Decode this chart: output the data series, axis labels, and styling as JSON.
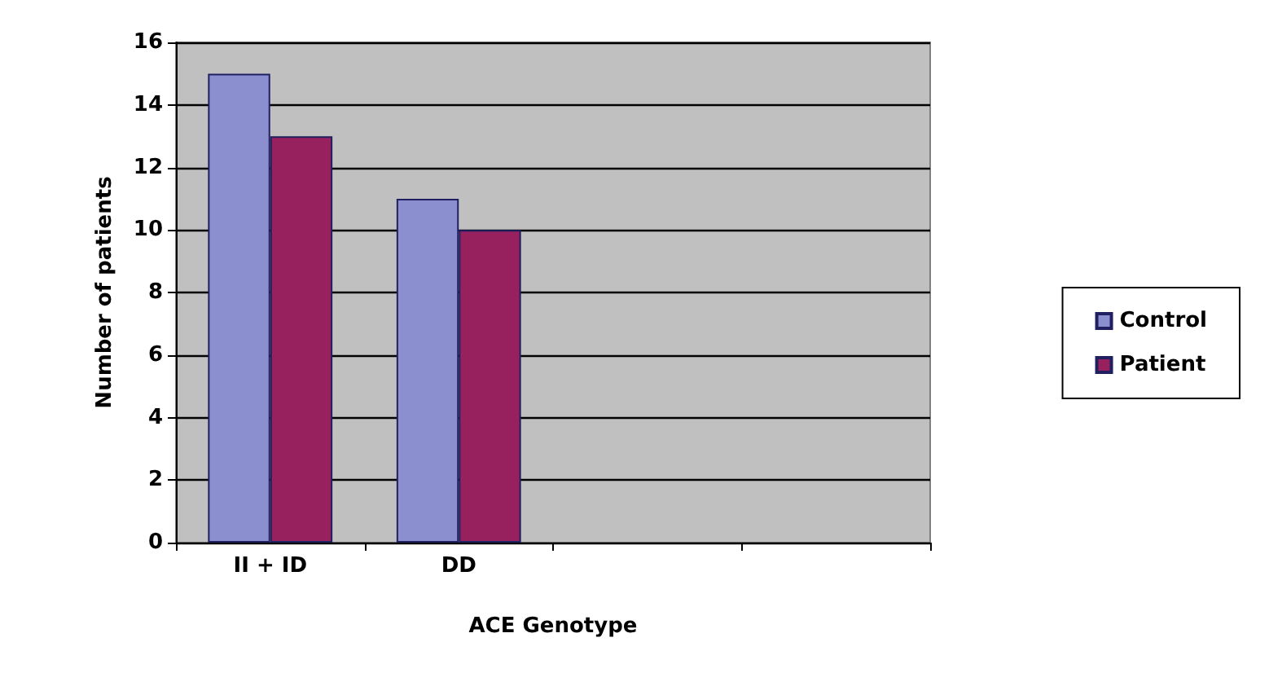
{
  "chart_data": {
    "type": "bar",
    "xlabel": "ACE Genotype",
    "ylabel": "Number of patients",
    "categories": [
      "II + ID",
      "DD",
      null,
      null
    ],
    "series": [
      {
        "name": "Control",
        "color": "#8b8fd0",
        "values": [
          15,
          11,
          null,
          null
        ]
      },
      {
        "name": "Patient",
        "color": "#97215f",
        "values": [
          13,
          10,
          null,
          null
        ]
      }
    ],
    "ylim": [
      0,
      16
    ],
    "yticks": [
      0,
      2,
      4,
      6,
      8,
      10,
      12,
      14,
      16
    ],
    "grid": "y",
    "legend": "right"
  }
}
